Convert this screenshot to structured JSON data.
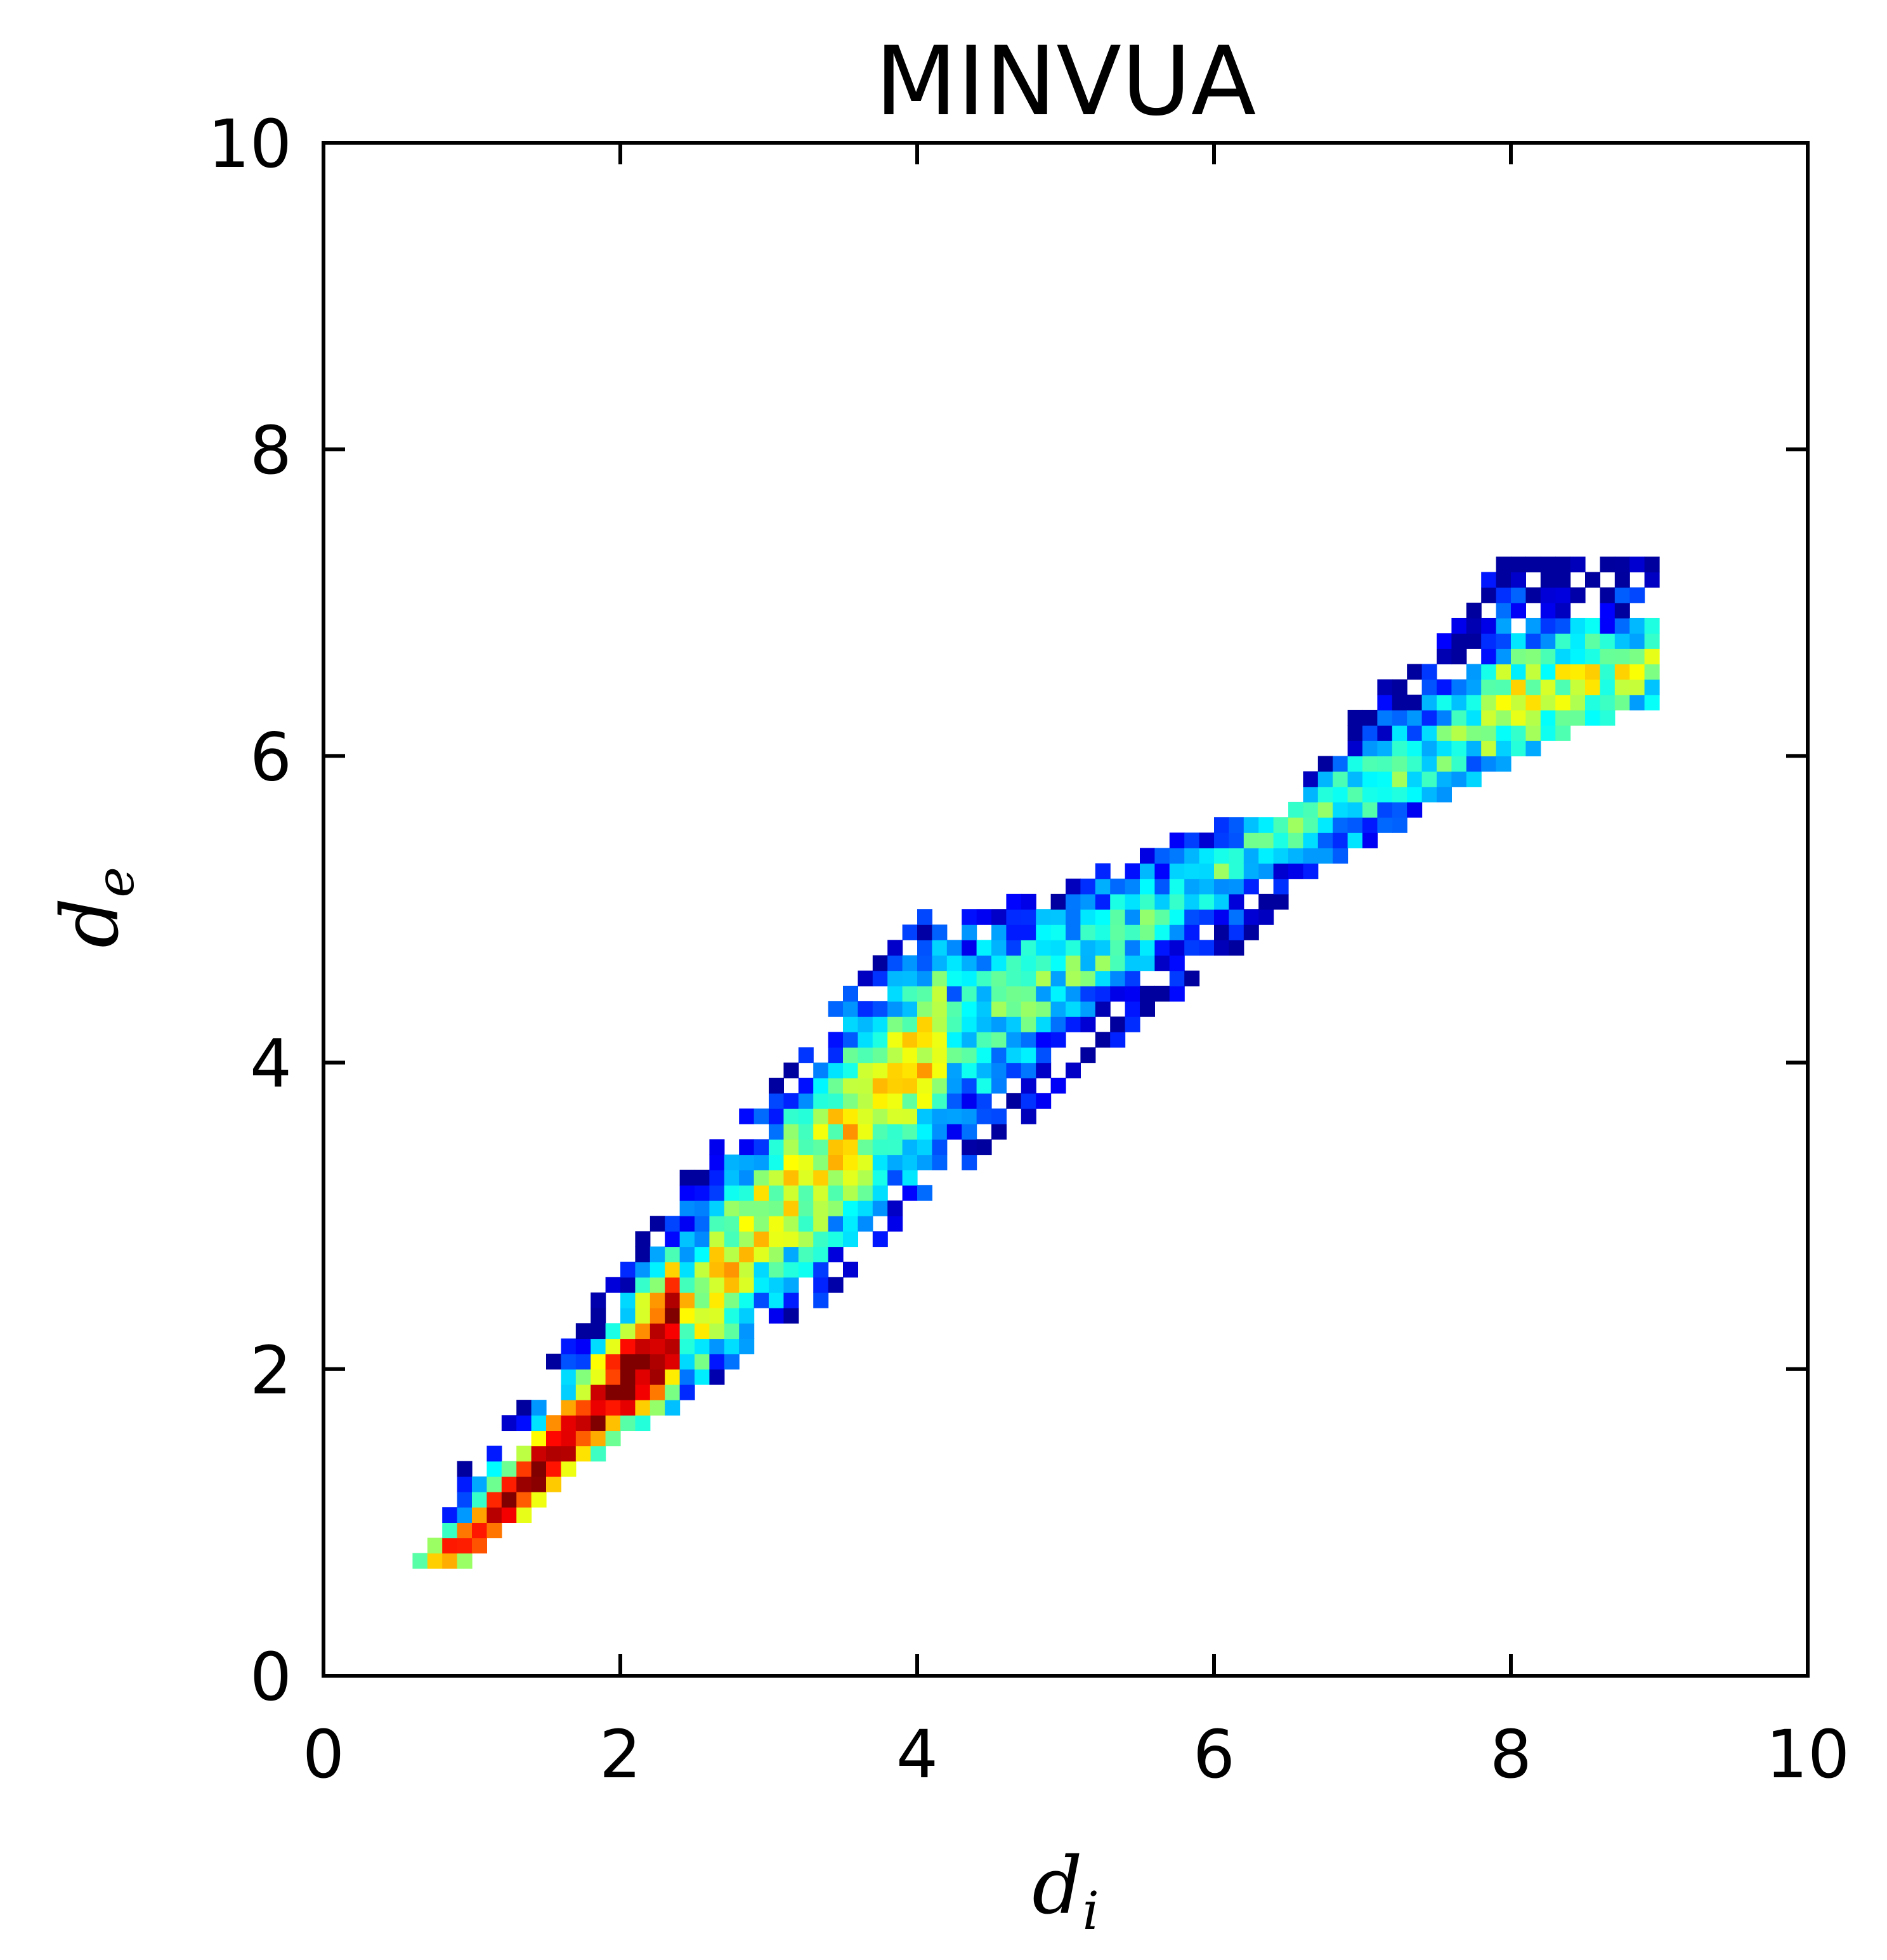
{
  "chart_data": {
    "type": "heatmap",
    "title": "MINVUA",
    "xlabel": "d",
    "xlabel_sub": "i",
    "ylabel": "d",
    "ylabel_sub": "e",
    "xlim": [
      0,
      10
    ],
    "ylim": [
      0,
      10
    ],
    "x_ticks": [
      0,
      2,
      4,
      6,
      8,
      10
    ],
    "y_ticks": [
      0,
      2,
      4,
      6,
      8,
      10
    ],
    "x_tick_labels": [
      "0",
      "2",
      "4",
      "6",
      "8",
      "10"
    ],
    "y_tick_labels": [
      "0",
      "2",
      "4",
      "6",
      "8",
      "10"
    ],
    "grid": false,
    "colormap": "jet",
    "bin_size": 0.1,
    "ridge": [
      [
        0.6,
        0.7
      ],
      [
        1.0,
        0.9
      ],
      [
        1.5,
        1.4
      ],
      [
        2.0,
        1.9
      ],
      [
        2.5,
        2.4
      ],
      [
        3.0,
        3.0
      ],
      [
        3.5,
        3.5
      ],
      [
        4.0,
        4.0
      ],
      [
        4.5,
        4.3
      ],
      [
        5.0,
        4.6
      ],
      [
        5.5,
        4.9
      ],
      [
        6.0,
        5.2
      ],
      [
        6.5,
        5.5
      ],
      [
        7.0,
        5.75
      ],
      [
        7.5,
        6.05
      ],
      [
        8.0,
        6.35
      ],
      [
        8.5,
        6.5
      ],
      [
        9.0,
        6.6
      ]
    ],
    "band_top": [
      [
        0.6,
        0.75
      ],
      [
        1.0,
        1.4
      ],
      [
        1.5,
        1.95
      ],
      [
        2.0,
        2.6
      ],
      [
        2.5,
        3.3
      ],
      [
        3.0,
        3.8
      ],
      [
        3.5,
        4.4
      ],
      [
        4.0,
        4.95
      ],
      [
        4.5,
        5.0
      ],
      [
        5.0,
        5.1
      ],
      [
        5.5,
        5.3
      ],
      [
        6.0,
        5.5
      ],
      [
        6.5,
        5.6
      ],
      [
        7.0,
        6.3
      ],
      [
        7.5,
        6.7
      ],
      [
        8.0,
        7.3
      ],
      [
        8.5,
        7.25
      ],
      [
        9.0,
        7.2
      ]
    ],
    "band_bottom": [
      [
        0.6,
        0.7
      ],
      [
        1.0,
        0.8
      ],
      [
        1.5,
        1.2
      ],
      [
        2.0,
        1.6
      ],
      [
        2.5,
        1.85
      ],
      [
        3.0,
        2.3
      ],
      [
        3.5,
        2.55
      ],
      [
        4.0,
        3.1
      ],
      [
        4.5,
        3.5
      ],
      [
        5.0,
        3.9
      ],
      [
        5.5,
        4.3
      ],
      [
        6.0,
        4.7
      ],
      [
        6.5,
        5.0
      ],
      [
        7.0,
        5.4
      ],
      [
        7.5,
        5.75
      ],
      [
        8.0,
        6.0
      ],
      [
        8.5,
        6.25
      ],
      [
        9.0,
        6.4
      ]
    ],
    "peak_density_region": [
      [
        1.1,
        1.2
      ],
      [
        2.4,
        2.5
      ]
    ]
  }
}
